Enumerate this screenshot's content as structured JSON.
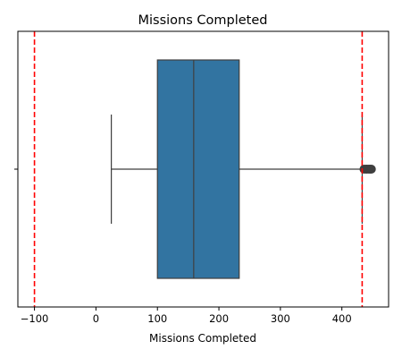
{
  "chart_data": {
    "type": "boxplot",
    "title": "Missions Completed",
    "xlabel": "Missions Completed",
    "ylabel": "",
    "orientation": "horizontal",
    "xlim": [
      -127,
      476
    ],
    "x_ticks": [
      -100,
      0,
      100,
      200,
      300,
      400
    ],
    "box": {
      "color": "#3274a1",
      "whisker_low": 25,
      "q1": 100,
      "median": 159,
      "q3": 233,
      "whisker_high": 433,
      "outliers": [
        436,
        439,
        441,
        444,
        446,
        448
      ]
    },
    "reference_lines": [
      {
        "x": -100,
        "color": "#ff0000",
        "style": "dashed"
      },
      {
        "x": 433,
        "color": "#ff0000",
        "style": "dashed"
      }
    ],
    "grid": false,
    "legend": "none"
  }
}
